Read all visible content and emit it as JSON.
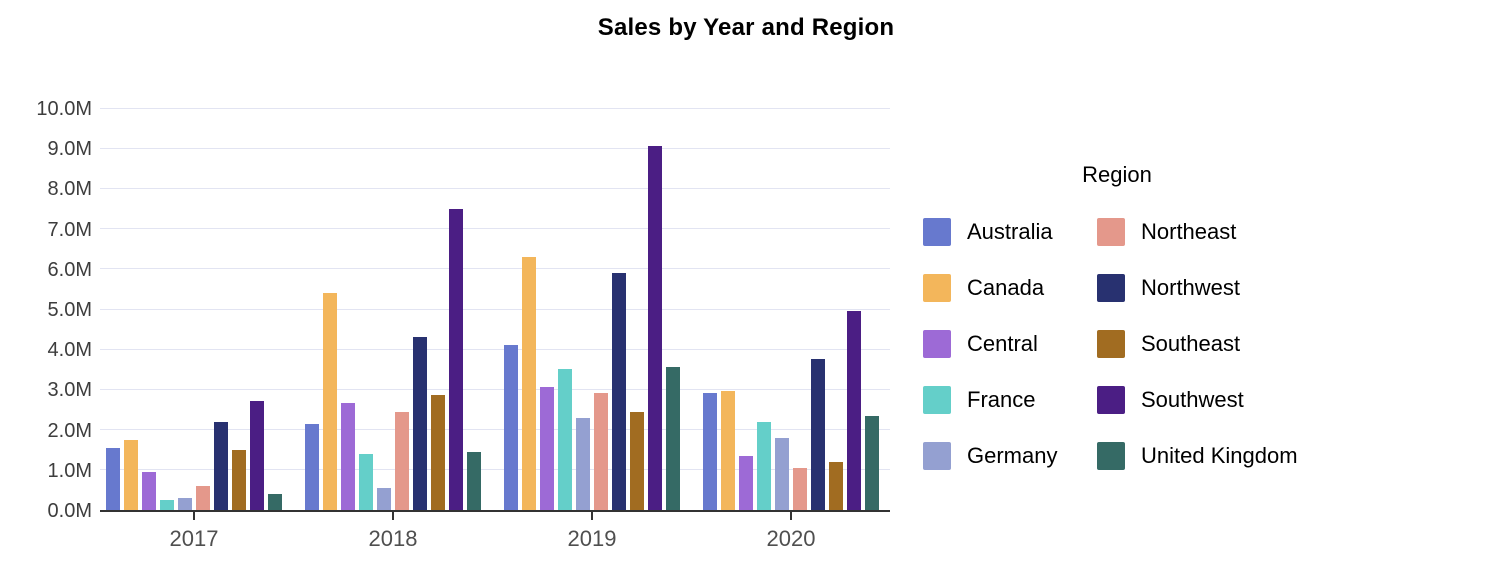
{
  "chart_data": {
    "type": "bar",
    "title": "Sales by Year and Region",
    "legend_title": "Region",
    "legend_position": "right",
    "grid": true,
    "value_unit": "M",
    "ylim": [
      0,
      10
    ],
    "ytick_labels": [
      "0.0M",
      "1.0M",
      "2.0M",
      "3.0M",
      "4.0M",
      "5.0M",
      "6.0M",
      "7.0M",
      "8.0M",
      "9.0M",
      "10.0M"
    ],
    "categories": [
      "2017",
      "2018",
      "2019",
      "2020"
    ],
    "series": [
      {
        "name": "Australia",
        "color": "#6779ce",
        "values": [
          1.55,
          2.15,
          4.1,
          2.9
        ]
      },
      {
        "name": "Canada",
        "color": "#f3b65b",
        "values": [
          1.75,
          5.4,
          6.3,
          2.95
        ]
      },
      {
        "name": "Central",
        "color": "#9d6ad6",
        "values": [
          0.95,
          2.65,
          3.05,
          1.35
        ]
      },
      {
        "name": "France",
        "color": "#64cfc9",
        "values": [
          0.25,
          1.4,
          3.5,
          2.2
        ]
      },
      {
        "name": "Germany",
        "color": "#94a0d1",
        "values": [
          0.3,
          0.55,
          2.3,
          1.8
        ]
      },
      {
        "name": "Northeast",
        "color": "#e4988b",
        "values": [
          0.6,
          2.45,
          2.9,
          1.05
        ]
      },
      {
        "name": "Northwest",
        "color": "#283170",
        "values": [
          2.2,
          4.3,
          5.9,
          3.75
        ]
      },
      {
        "name": "Southeast",
        "color": "#a16c21",
        "values": [
          1.5,
          2.85,
          2.45,
          1.2
        ]
      },
      {
        "name": "Southwest",
        "color": "#4b1e84",
        "values": [
          2.7,
          7.5,
          9.05,
          4.95
        ]
      },
      {
        "name": "United Kingdom",
        "color": "#356a65",
        "values": [
          0.4,
          1.45,
          3.55,
          2.35
        ]
      }
    ],
    "legend_columns": [
      [
        "Australia",
        "Canada",
        "Central",
        "France",
        "Germany"
      ],
      [
        "Northeast",
        "Northwest",
        "Southeast",
        "Southwest",
        "United Kingdom"
      ]
    ]
  },
  "styles": {
    "background": "#ffffff",
    "grid_color": "#e2e4f2",
    "axis_color": "#333333",
    "y_tick_text_color": "#3d3d3d",
    "x_tick_text_color": "#4f4f4f",
    "title_color": "#000000",
    "legend_text_color": "#000000"
  }
}
